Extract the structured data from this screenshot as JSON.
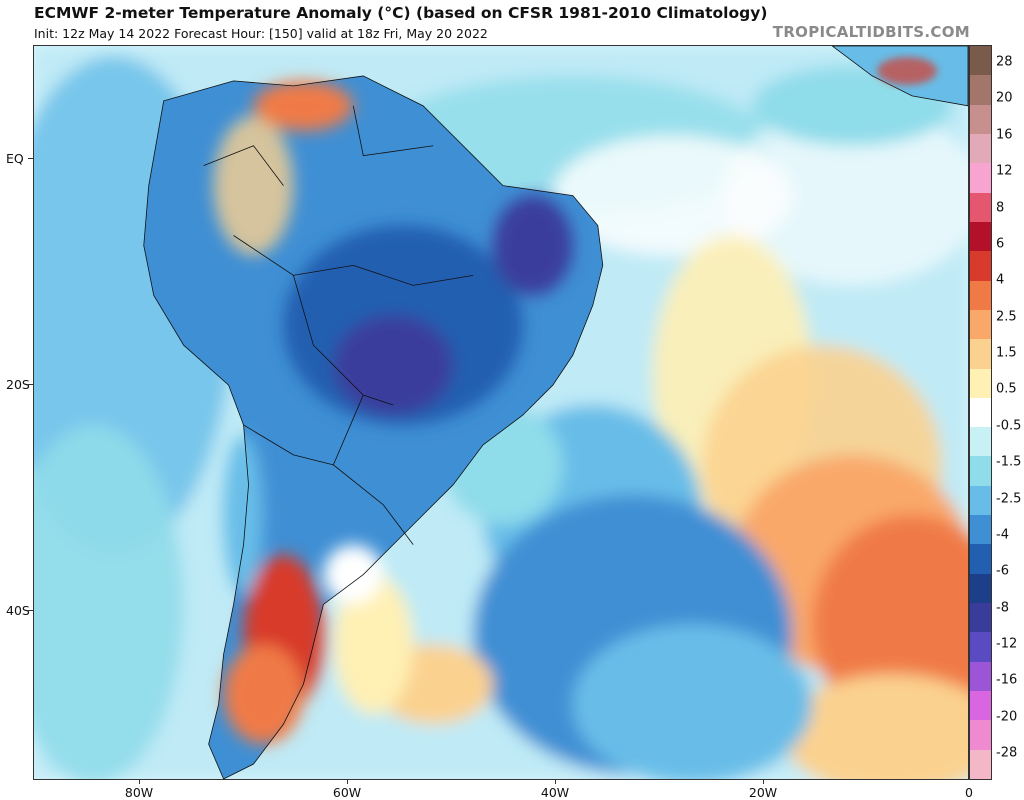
{
  "header": {
    "title": "ECMWF 2-meter Temperature Anomaly (°C) (based on CFSR 1981-2010 Climatology)",
    "subtitle": "Init: 12z May 14 2022   Forecast Hour: [150]   valid at 18z Fri, May 20 2022",
    "credit": "TROPICALTIDBITS.COM"
  },
  "axes": {
    "lat_labels": [
      "EQ",
      "20S",
      "40S"
    ],
    "lon_labels": [
      "80W",
      "60W",
      "40W",
      "20W",
      "0"
    ]
  },
  "colorbar": {
    "labels": [
      "28",
      "20",
      "16",
      "12",
      "8",
      "6",
      "4",
      "2.5",
      "1.5",
      "0.5",
      "-0.5",
      "-1.5",
      "-2.5",
      "-4",
      "-6",
      "-8",
      "-12",
      "-16",
      "-20",
      "-28"
    ],
    "colors": [
      "#7a5a4a",
      "#a2766a",
      "#c7908f",
      "#e2a9b9",
      "#f7a4d0",
      "#e5566f",
      "#b3112a",
      "#d83a2b",
      "#f07a46",
      "#f9a86a",
      "#fbd18f",
      "#fff0b4",
      "#ffffff",
      "#c8f1f6",
      "#8fdcea",
      "#67bde8",
      "#3f8fd4",
      "#235fb0",
      "#1d3f8a",
      "#3a3c9c",
      "#5a4bc2",
      "#9b55d6",
      "#d966e0",
      "#f08ad0",
      "#f4b7c8"
    ]
  },
  "map": {
    "region": "South America and South Atlantic",
    "colors": {
      "ocean_base": "#d6f4fb",
      "warm_anomaly": "#f07a46",
      "strong_warm": "#d83a2b",
      "cold_anomaly": "#235fb0",
      "strong_cold": "#3a3c9c"
    }
  }
}
